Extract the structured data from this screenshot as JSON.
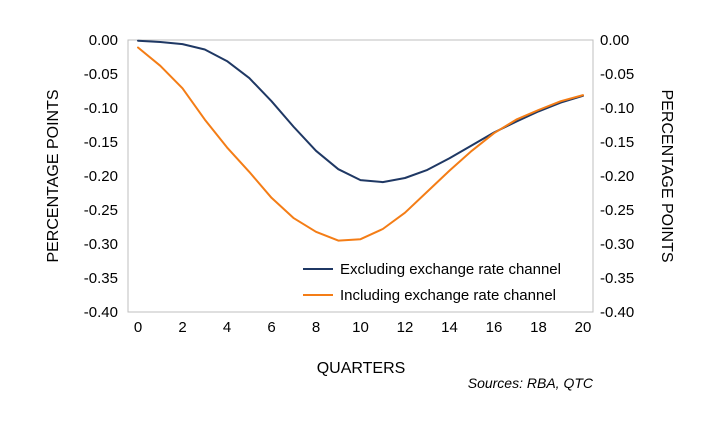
{
  "chart_data": {
    "type": "line",
    "title": "",
    "xlabel": "QUARTERS",
    "ylabel_left": "PERCENTAGE POINTS",
    "ylabel_right": "PERCENTAGE POINTS",
    "x": [
      0,
      1,
      2,
      3,
      4,
      5,
      6,
      7,
      8,
      9,
      10,
      11,
      12,
      13,
      14,
      15,
      16,
      17,
      18,
      19,
      20
    ],
    "xlim": [
      0,
      20
    ],
    "xticks": [
      "0",
      "2",
      "4",
      "6",
      "8",
      "10",
      "12",
      "14",
      "16",
      "18",
      "20"
    ],
    "ylim": [
      -0.4,
      0.0
    ],
    "yticks": [
      "0.00",
      "-0.05",
      "-0.10",
      "-0.15",
      "-0.20",
      "-0.25",
      "-0.30",
      "-0.35",
      "-0.40"
    ],
    "grid": false,
    "legend_position": "bottom-right",
    "series": [
      {
        "name": "Excluding exchange rate channel",
        "color": "#1f3864",
        "values": [
          -0.001,
          -0.003,
          -0.006,
          -0.014,
          -0.031,
          -0.056,
          -0.09,
          -0.128,
          -0.163,
          -0.19,
          -0.206,
          -0.209,
          -0.203,
          -0.191,
          -0.174,
          -0.155,
          -0.136,
          -0.12,
          -0.105,
          -0.092,
          -0.082
        ]
      },
      {
        "name": "Including exchange rate channel",
        "color": "#f47d16",
        "values": [
          -0.011,
          -0.038,
          -0.071,
          -0.117,
          -0.158,
          -0.194,
          -0.232,
          -0.262,
          -0.282,
          -0.295,
          -0.293,
          -0.278,
          -0.254,
          -0.223,
          -0.192,
          -0.163,
          -0.137,
          -0.117,
          -0.103,
          -0.09,
          -0.081
        ]
      }
    ]
  },
  "source_note": "Sources: RBA, QTC"
}
